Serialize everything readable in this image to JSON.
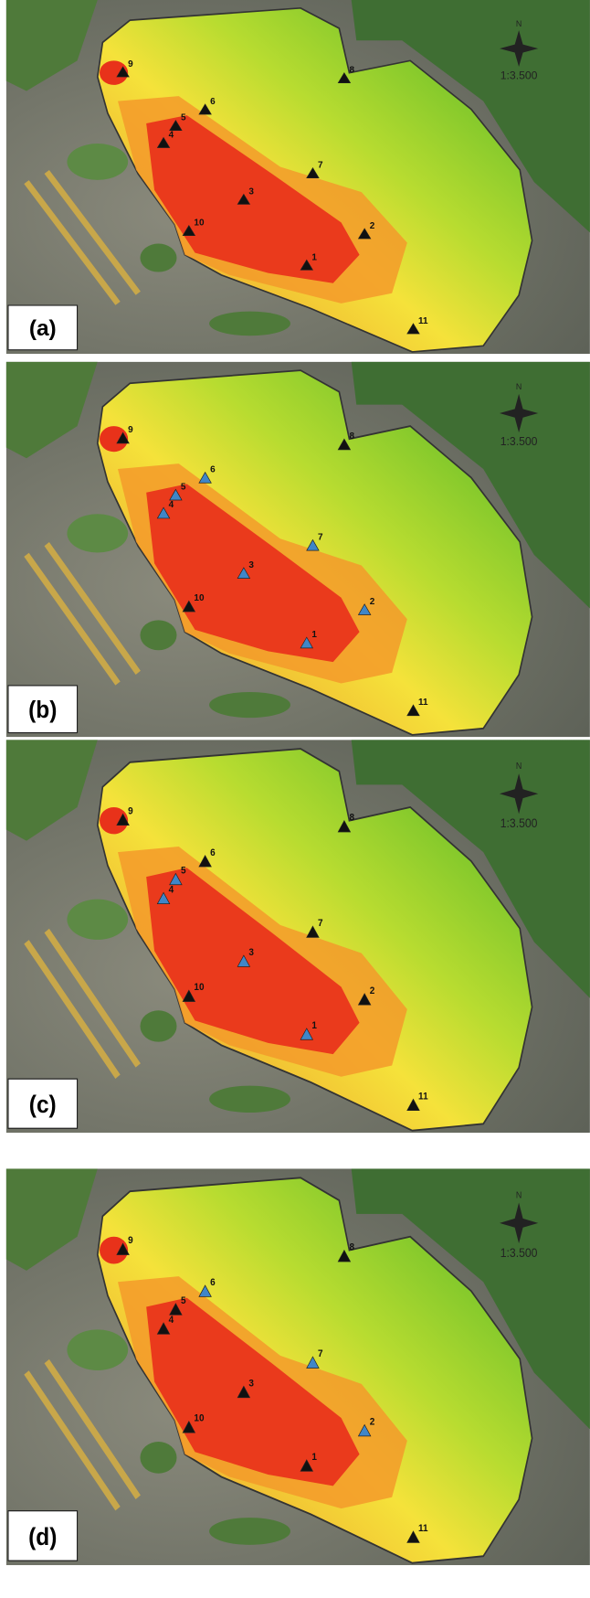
{
  "panels": [
    {
      "label": "(a)",
      "north": "N",
      "scale": "1:3.500",
      "points": [
        {
          "label": "1",
          "color": "#111111"
        },
        {
          "label": "2",
          "color": "#111111"
        },
        {
          "label": "3",
          "color": "#111111"
        },
        {
          "label": "4",
          "color": "#111111"
        },
        {
          "label": "5",
          "color": "#111111"
        },
        {
          "label": "6",
          "color": "#111111"
        },
        {
          "label": "7",
          "color": "#111111"
        },
        {
          "label": "8",
          "color": "#111111"
        },
        {
          "label": "9",
          "color": "#111111"
        },
        {
          "label": "10",
          "color": "#111111"
        },
        {
          "label": "11",
          "color": "#111111"
        }
      ]
    },
    {
      "label": "(b)",
      "north": "N",
      "scale": "1:3.500",
      "points": [
        {
          "label": "1",
          "color": "#3f86c8"
        },
        {
          "label": "2",
          "color": "#3f86c8"
        },
        {
          "label": "3",
          "color": "#3f86c8"
        },
        {
          "label": "4",
          "color": "#3f86c8"
        },
        {
          "label": "5",
          "color": "#3f86c8"
        },
        {
          "label": "6",
          "color": "#3f86c8"
        },
        {
          "label": "7",
          "color": "#3f86c8"
        },
        {
          "label": "8",
          "color": "#111111"
        },
        {
          "label": "9",
          "color": "#111111"
        },
        {
          "label": "10",
          "color": "#111111"
        },
        {
          "label": "11",
          "color": "#111111"
        }
      ]
    },
    {
      "label": "(c)",
      "north": "N",
      "scale": "1:3.500",
      "points": [
        {
          "label": "1",
          "color": "#3f86c8"
        },
        {
          "label": "2",
          "color": "#111111"
        },
        {
          "label": "3",
          "color": "#3f86c8"
        },
        {
          "label": "4",
          "color": "#3f86c8"
        },
        {
          "label": "5",
          "color": "#3f86c8"
        },
        {
          "label": "6",
          "color": "#111111"
        },
        {
          "label": "7",
          "color": "#111111"
        },
        {
          "label": "8",
          "color": "#111111"
        },
        {
          "label": "9",
          "color": "#111111"
        },
        {
          "label": "10",
          "color": "#111111"
        },
        {
          "label": "11",
          "color": "#111111"
        }
      ]
    },
    {
      "label": "(d)",
      "north": "N",
      "scale": "1:3.500",
      "points": [
        {
          "label": "1",
          "color": "#111111"
        },
        {
          "label": "2",
          "color": "#3f86c8"
        },
        {
          "label": "3",
          "color": "#111111"
        },
        {
          "label": "4",
          "color": "#111111"
        },
        {
          "label": "5",
          "color": "#111111"
        },
        {
          "label": "6",
          "color": "#3f86c8"
        },
        {
          "label": "7",
          "color": "#3f86c8"
        },
        {
          "label": "8",
          "color": "#111111"
        },
        {
          "label": "9",
          "color": "#111111"
        },
        {
          "label": "10",
          "color": "#111111"
        },
        {
          "label": "11",
          "color": "#111111"
        }
      ]
    }
  ]
}
